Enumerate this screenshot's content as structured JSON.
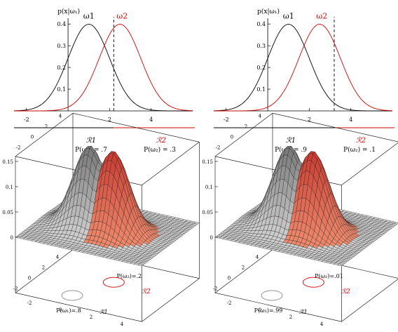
{
  "chart_data": [
    {
      "type": "line",
      "ylabel": "p(x|ω₁)",
      "xticks": [
        "-2",
        "2",
        "4"
      ],
      "yticks": [
        "0.1",
        "0.2",
        "0.3",
        "0.4"
      ],
      "xlim": [
        -2.6,
        6
      ],
      "ylim": [
        0,
        0.42
      ],
      "series": [
        {
          "name": "ω1",
          "color": "#000000",
          "mean": 1,
          "sd": 1,
          "x": [
            -2,
            -1,
            0,
            1,
            2,
            3,
            4,
            5
          ],
          "values": [
            0.004,
            0.054,
            0.242,
            0.399,
            0.242,
            0.054,
            0.004,
            0.0001
          ]
        },
        {
          "name": "ω2",
          "color": "#d40000",
          "mean": 2.5,
          "sd": 1,
          "x": [
            -1,
            0,
            1,
            2,
            2.5,
            3,
            4,
            5,
            6
          ],
          "values": [
            0.0009,
            0.0175,
            0.1295,
            0.352,
            0.399,
            0.352,
            0.1295,
            0.0175,
            0.0009
          ]
        }
      ],
      "threshold": 2.2,
      "regions": [
        {
          "label": "ℛ1",
          "color": "#000000"
        },
        {
          "label": "ℛ2",
          "color": "#d40000"
        }
      ],
      "priors": [
        "P(ω₁) = .7",
        "P(ω₂) = .3"
      ]
    },
    {
      "type": "line",
      "ylabel": "p(x|ω₁)",
      "xticks": [
        "-2",
        "2",
        "4"
      ],
      "yticks": [
        "0.1",
        "0.2",
        "0.3",
        "0.4"
      ],
      "xlim": [
        -2.6,
        6
      ],
      "ylim": [
        0,
        0.42
      ],
      "series": [
        {
          "name": "ω1",
          "color": "#000000",
          "mean": 1,
          "sd": 1,
          "x": [
            -2,
            -1,
            0,
            1,
            2,
            3,
            4,
            5
          ],
          "values": [
            0.004,
            0.054,
            0.242,
            0.399,
            0.242,
            0.054,
            0.004,
            0.0001
          ]
        },
        {
          "name": "ω2",
          "color": "#d40000",
          "mean": 2.5,
          "sd": 1,
          "x": [
            -1,
            0,
            1,
            2,
            2.5,
            3,
            4,
            5,
            6
          ],
          "values": [
            0.0009,
            0.0175,
            0.1295,
            0.352,
            0.399,
            0.352,
            0.1295,
            0.0175,
            0.0009
          ]
        }
      ],
      "threshold": 3.2,
      "regions": [
        {
          "label": "ℛ1",
          "color": "#000000"
        },
        {
          "label": "ℛ2",
          "color": "#d40000"
        }
      ],
      "priors": [
        "P(ω₁) = .9",
        "P(ω₂) = .1"
      ]
    },
    {
      "type": "surface3d",
      "zticks": [
        "0",
        "0.05",
        "0.1",
        "0.15"
      ],
      "xticks": [
        "-2",
        "0",
        "2",
        "4"
      ],
      "yticks": [
        "-2",
        "0",
        "2",
        "4"
      ],
      "zlim": [
        0,
        0.16
      ],
      "series": [
        {
          "name": "ω1",
          "color": "#9a9a9a",
          "mean": [
            0,
            1
          ],
          "sd": 1,
          "peak": 0.16
        },
        {
          "name": "ω2",
          "color": "#d43a30",
          "mean": [
            1.5,
            1
          ],
          "sd": 1,
          "peak": 0.16
        }
      ],
      "region_labels": [
        "ℛ1",
        "ℛ2"
      ],
      "priors": [
        "P(ω₁)=.8",
        "P(ω₂)=.2"
      ]
    },
    {
      "type": "surface3d",
      "zticks": [
        "0",
        "0.05",
        "0.1",
        "0.15"
      ],
      "xticks": [
        "-2",
        "0",
        "2",
        "4"
      ],
      "yticks": [
        "-2",
        "0",
        "2",
        "4"
      ],
      "zlim": [
        0,
        0.16
      ],
      "series": [
        {
          "name": "ω1",
          "color": "#9a9a9a",
          "mean": [
            0,
            1
          ],
          "sd": 1,
          "peak": 0.16
        },
        {
          "name": "ω2",
          "color": "#d43a30",
          "mean": [
            1.5,
            1
          ],
          "sd": 1,
          "peak": 0.16
        }
      ],
      "region_labels": [
        "ℛ1",
        "ℛ2"
      ],
      "priors": [
        "P(ω₁)=.99",
        "P(ω₂)=.01"
      ]
    }
  ]
}
